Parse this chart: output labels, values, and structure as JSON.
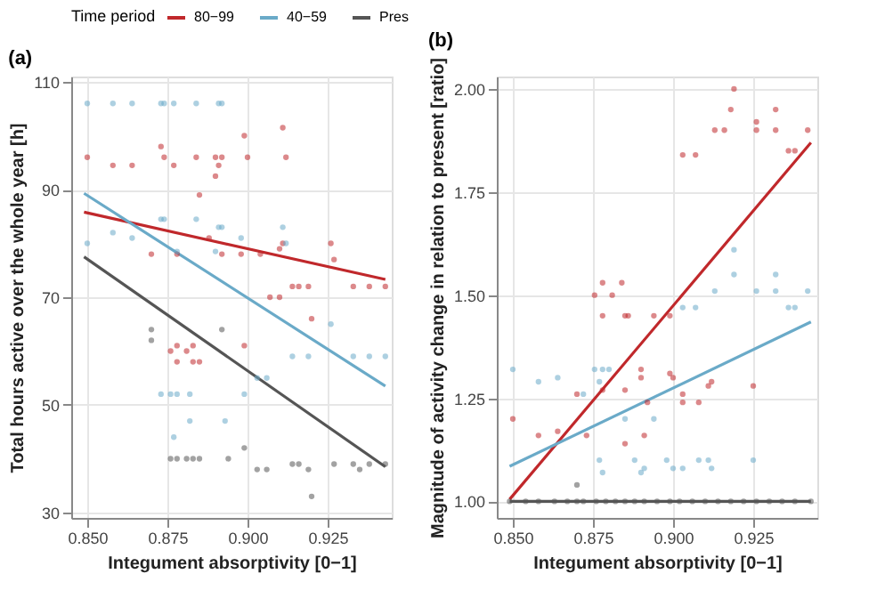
{
  "chart_data": [
    {
      "type": "scatter",
      "title": "(a)",
      "xlabel": "Integument absorptivity [0−1]",
      "ylabel": "Total hours active over the whole year [h]",
      "legend_title": "Time period",
      "legend": "top",
      "grid": true,
      "marker": "circle",
      "xlim": [
        0.845,
        0.945
      ],
      "xticks": [
        {
          "value": 0.85,
          "label": "0.850"
        },
        {
          "value": 0.875,
          "label": "0.875"
        },
        {
          "value": 0.9,
          "label": "0.900"
        },
        {
          "value": 0.925,
          "label": "0.925"
        }
      ],
      "ylim": [
        29,
        111
      ],
      "yticks": [
        30,
        50,
        70,
        90,
        110
      ],
      "series": [
        {
          "color": "#c0282b",
          "x": [
            0.85,
            0.858,
            0.864,
            0.873,
            0.874,
            0.877,
            0.884,
            0.885,
            0.89,
            0.891,
            0.892,
            0.89,
            0.899,
            0.9,
            0.911,
            0.912,
            0.87,
            0.878,
            0.888,
            0.892,
            0.898,
            0.904,
            0.91,
            0.911,
            0.914,
            0.916,
            0.919,
            0.926,
            0.927,
            0.933,
            0.938,
            0.943,
            0.876,
            0.878,
            0.881,
            0.883,
            0.878,
            0.883,
            0.885,
            0.899,
            0.92,
            0.907,
            0.91
          ],
          "values": [
            96,
            94.5,
            94.5,
            98,
            96,
            94.5,
            96,
            89,
            96,
            94.5,
            96,
            92.5,
            100,
            96,
            101.5,
            96,
            78,
            78,
            81,
            78,
            78,
            78,
            79,
            80,
            72,
            72,
            72,
            80,
            77,
            72,
            72,
            72,
            60,
            61,
            60,
            61,
            58,
            58,
            58,
            61,
            66,
            70,
            70
          ]
        },
        {
          "color": "#6aaac8",
          "x": [
            0.85,
            0.858,
            0.864,
            0.873,
            0.874,
            0.877,
            0.884,
            0.891,
            0.892,
            0.85,
            0.858,
            0.864,
            0.873,
            0.874,
            0.884,
            0.891,
            0.892,
            0.911,
            0.912,
            0.898,
            0.878,
            0.89,
            0.914,
            0.919,
            0.933,
            0.938,
            0.943,
            0.926,
            0.873,
            0.876,
            0.878,
            0.882,
            0.882,
            0.893,
            0.877,
            0.899,
            0.906,
            0.903
          ],
          "values": [
            106,
            106,
            106,
            106,
            106,
            106,
            106,
            106,
            106,
            80,
            82,
            81,
            84.5,
            84.5,
            84.5,
            83,
            83,
            83,
            80,
            81,
            78.5,
            78.5,
            59,
            59,
            59,
            59,
            59,
            65,
            52,
            52,
            52,
            52,
            47,
            47,
            44,
            52,
            55,
            55
          ]
        },
        {
          "color": "#555555",
          "x": [
            0.876,
            0.878,
            0.881,
            0.883,
            0.885,
            0.894,
            0.899,
            0.903,
            0.906,
            0.914,
            0.916,
            0.919,
            0.92,
            0.927,
            0.933,
            0.935,
            0.938,
            0.943,
            0.87,
            0.87,
            0.892
          ],
          "values": [
            40,
            40,
            40,
            40,
            40,
            40,
            42,
            38,
            38,
            39,
            39,
            38,
            33,
            39,
            39,
            38,
            39,
            39,
            64,
            62,
            64
          ]
        },
        {
          "type": "line",
          "name": "80−99",
          "color": "#c0282b",
          "marker": "none",
          "line_style": "solid",
          "x": [
            0.849,
            0.943
          ],
          "values": [
            85.8,
            73.3
          ]
        },
        {
          "type": "line",
          "name": "40−59",
          "color": "#6aaac8",
          "marker": "none",
          "line_style": "solid",
          "x": [
            0.849,
            0.943
          ],
          "values": [
            89.3,
            53.5
          ]
        },
        {
          "type": "line",
          "name": "Pres",
          "color": "#555555",
          "marker": "none",
          "line_style": "solid",
          "x": [
            0.849,
            0.943
          ],
          "values": [
            77.5,
            38.5
          ]
        }
      ]
    },
    {
      "type": "scatter",
      "title": "(b)",
      "xlabel": "Integument absorptivity [0−1]",
      "ylabel": "Magnitude of activity change in relation to present [ratio]",
      "grid": true,
      "marker": "circle",
      "xlim": [
        0.845,
        0.945
      ],
      "xticks": [
        {
          "value": 0.85,
          "label": "0.850"
        },
        {
          "value": 0.875,
          "label": "0.875"
        },
        {
          "value": 0.9,
          "label": "0.900"
        },
        {
          "value": 0.925,
          "label": "0.925"
        }
      ],
      "ylim": [
        0.96,
        2.03
      ],
      "yticks": [
        {
          "value": 1,
          "label": "1.00"
        },
        {
          "value": 1.25,
          "label": "1.25"
        },
        {
          "value": 1.5,
          "label": "1.50"
        },
        {
          "value": 1.75,
          "label": "1.75"
        },
        {
          "value": 2,
          "label": "2.00"
        }
      ],
      "series": [
        {
          "color": "#c0282b",
          "x": [
            0.8755,
            0.878,
            0.881,
            0.884,
            0.903,
            0.907,
            0.913,
            0.916,
            0.918,
            0.919,
            0.926,
            0.926,
            0.932,
            0.932,
            0.936,
            0.938,
            0.942,
            0.85,
            0.858,
            0.864,
            0.87,
            0.873,
            0.878,
            0.878,
            0.885,
            0.886,
            0.885,
            0.885,
            0.89,
            0.89,
            0.891,
            0.892,
            0.894,
            0.899,
            0.899,
            0.9,
            0.903,
            0.903,
            0.908,
            0.911,
            0.912,
            0.925
          ],
          "values": [
            1.5,
            1.53,
            1.5,
            1.53,
            1.84,
            1.84,
            1.9,
            1.9,
            1.95,
            2.0,
            1.92,
            1.9,
            1.95,
            1.9,
            1.85,
            1.85,
            1.9,
            1.2,
            1.16,
            1.17,
            1.26,
            1.16,
            1.27,
            1.45,
            1.45,
            1.45,
            1.27,
            1.14,
            1.32,
            1.3,
            1.16,
            1.24,
            1.45,
            1.45,
            1.31,
            1.3,
            1.26,
            1.24,
            1.24,
            1.28,
            1.29,
            1.28
          ]
        },
        {
          "color": "#6aaac8",
          "x": [
            0.85,
            0.858,
            0.864,
            0.8755,
            0.878,
            0.88,
            0.872,
            0.877,
            0.877,
            0.878,
            0.885,
            0.888,
            0.89,
            0.891,
            0.894,
            0.898,
            0.9,
            0.903,
            0.908,
            0.911,
            0.912,
            0.925,
            0.903,
            0.907,
            0.936,
            0.938,
            0.919,
            0.919,
            0.913,
            0.926,
            0.932,
            0.932,
            0.942
          ],
          "values": [
            1.32,
            1.29,
            1.3,
            1.32,
            1.32,
            1.32,
            1.26,
            1.29,
            1.1,
            1.07,
            1.2,
            1.1,
            1.07,
            1.08,
            1.2,
            1.1,
            1.08,
            1.08,
            1.1,
            1.1,
            1.08,
            1.1,
            1.47,
            1.47,
            1.47,
            1.47,
            1.55,
            1.61,
            1.51,
            1.51,
            1.55,
            1.51,
            1.51
          ]
        },
        {
          "color": "#555555",
          "x": [
            0.849,
            0.854,
            0.858,
            0.863,
            0.867,
            0.87,
            0.872,
            0.876,
            0.879,
            0.882,
            0.885,
            0.888,
            0.891,
            0.895,
            0.899,
            0.902,
            0.906,
            0.91,
            0.914,
            0.918,
            0.922,
            0.926,
            0.93,
            0.934,
            0.938,
            0.943,
            0.87
          ],
          "values": [
            1,
            1,
            1,
            1,
            1,
            1,
            1,
            1,
            1,
            1,
            1,
            1,
            1,
            1,
            1,
            1,
            1,
            1,
            1,
            1,
            1,
            1,
            1,
            1,
            1,
            1,
            1.04
          ]
        },
        {
          "type": "line",
          "color": "#c0282b",
          "marker": "none",
          "line_style": "solid",
          "x": [
            0.849,
            0.943
          ],
          "values": [
            1.005,
            1.87
          ]
        },
        {
          "type": "line",
          "color": "#6aaac8",
          "marker": "none",
          "line_style": "solid",
          "x": [
            0.849,
            0.943
          ],
          "values": [
            1.085,
            1.435
          ]
        },
        {
          "type": "line",
          "color": "#555555",
          "marker": "none",
          "line_style": "solid",
          "x": [
            0.849,
            0.943
          ],
          "values": [
            1.0,
            1.0
          ]
        }
      ]
    }
  ]
}
